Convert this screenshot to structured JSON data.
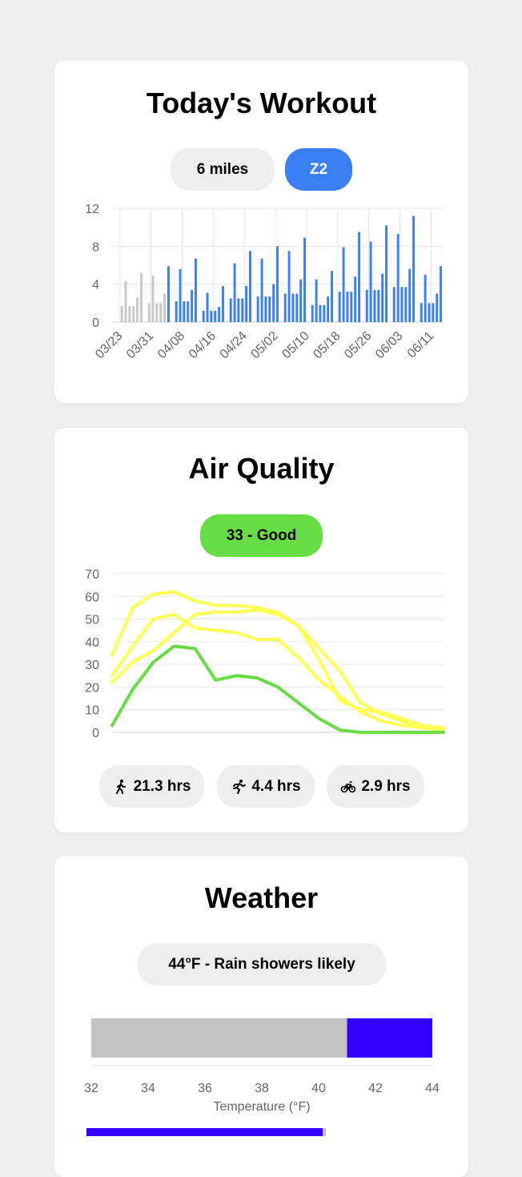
{
  "workout": {
    "title": "Today's Workout",
    "distance_label": "6 miles",
    "zone_label": "Z2",
    "colors": {
      "past": "#c8c8c8",
      "future": "#3b7ff5",
      "accent": "#3b7ff5"
    }
  },
  "air": {
    "title": "Air Quality",
    "aqi_label": "33 - Good",
    "stats": [
      {
        "icon": "walk-icon",
        "label": "21.3 hrs"
      },
      {
        "icon": "run-icon",
        "label": "4.4 hrs"
      },
      {
        "icon": "bike-icon",
        "label": "2.9 hrs"
      }
    ],
    "colors": {
      "good": "#66dd44",
      "moderate": "#ffff55"
    }
  },
  "weather": {
    "title": "Weather",
    "summary": "44°F - Rain showers likely",
    "colors": {
      "bar_gray": "#c4c4c4",
      "bar_blue": "#3300ff"
    }
  },
  "chart_data": [
    {
      "type": "bar",
      "name": "workout-mileage",
      "ylim": [
        0,
        12
      ],
      "yticks": [
        0,
        4,
        8,
        12
      ],
      "xtick_labels": [
        "03/23",
        "03/31",
        "04/08",
        "04/16",
        "04/24",
        "05/02",
        "05/10",
        "05/18",
        "05/26",
        "06/03",
        "06/11"
      ],
      "x_start": "03/23",
      "x_end": "06/14",
      "past_values": [
        0,
        0,
        1.7,
        4.3,
        1.7,
        1.7,
        2.6,
        5.2,
        0,
        2.0,
        4.9,
        2.0,
        2.0,
        3.0
      ],
      "future_values": [
        5.9,
        0,
        2.2,
        5.6,
        2.2,
        2.2,
        3.4,
        6.7,
        0,
        1.2,
        3.1,
        1.2,
        1.2,
        1.6,
        3.8,
        0,
        2.5,
        6.2,
        2.5,
        2.5,
        3.8,
        7.5,
        0,
        2.7,
        6.7,
        2.7,
        2.7,
        4.0,
        8.0,
        0,
        3.0,
        7.5,
        3.0,
        3.0,
        4.5,
        8.9,
        0,
        1.8,
        4.5,
        1.8,
        1.8,
        2.7,
        5.4,
        0,
        3.2,
        7.9,
        3.2,
        3.2,
        4.8,
        9.5,
        0,
        3.4,
        8.5,
        3.4,
        3.4,
        5.1,
        10.2,
        0,
        3.7,
        9.3,
        3.7,
        3.7,
        5.6,
        11.2,
        0,
        2.0,
        5.0,
        2.0,
        2.0,
        3.0,
        5.9
      ]
    },
    {
      "type": "line",
      "name": "air-quality-forecast",
      "ylim": [
        0,
        70
      ],
      "yticks": [
        0,
        10,
        20,
        30,
        40,
        50,
        60,
        70
      ],
      "series": [
        {
          "color": "#ffff55",
          "values": [
            34,
            55,
            61,
            62,
            58,
            56,
            56,
            55,
            53,
            47,
            32,
            14,
            10,
            9,
            6,
            3,
            2
          ]
        },
        {
          "color": "#ffff55",
          "values": [
            25,
            38,
            50,
            52,
            46,
            45,
            44,
            41,
            41,
            33,
            23,
            16,
            9,
            5,
            3,
            2,
            2
          ]
        },
        {
          "color": "#ffff55",
          "values": [
            22,
            31,
            36,
            44,
            52,
            53,
            53,
            54,
            52,
            47,
            37,
            27,
            13,
            8,
            5,
            2,
            1
          ]
        },
        {
          "color": "#66dd44",
          "values": [
            3,
            19,
            31,
            38,
            37,
            23,
            25,
            24,
            20,
            13,
            6,
            1,
            0,
            0,
            0,
            0,
            0
          ]
        }
      ]
    },
    {
      "type": "bar",
      "name": "temperature-range",
      "xlim": [
        32,
        44
      ],
      "xticks": [
        32,
        34,
        36,
        38,
        40,
        42,
        44
      ],
      "xlabel": "Temperature (°F)",
      "segments": [
        {
          "from": 32,
          "to": 41,
          "color": "#c4c4c4"
        },
        {
          "from": 41,
          "to": 44,
          "color": "#3300ff"
        }
      ]
    }
  ]
}
